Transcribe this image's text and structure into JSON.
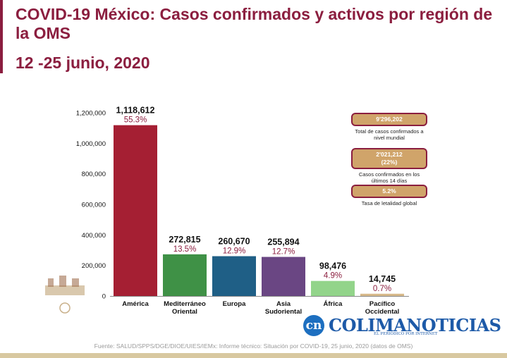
{
  "header": {
    "title": "COVID-19 México: Casos confirmados y activos por región de la OMS",
    "subtitle": "12 -25 junio, 2020"
  },
  "chart_data": {
    "type": "bar",
    "categories": [
      "América",
      "Mediterráneo Oriental",
      "Europa",
      "Asia Sudoriental",
      "África",
      "Pacífico Occidental"
    ],
    "category_lines": [
      [
        "América"
      ],
      [
        "Mediterráneo",
        "Oriental"
      ],
      [
        "Europa"
      ],
      [
        "Asia",
        "Sudoriental"
      ],
      [
        "África"
      ],
      [
        "Pacífico",
        "Occidental"
      ]
    ],
    "values": [
      1118612,
      272815,
      260670,
      255894,
      98476,
      14745
    ],
    "value_labels": [
      "1,118,612",
      "272,815",
      "260,670",
      "255,894",
      "98,476",
      "14,745"
    ],
    "percent_labels": [
      "55.3%",
      "13.5%",
      "12.9%",
      "12.7%",
      "4.9%",
      "0.7%"
    ],
    "colors": [
      "#a51f33",
      "#3f9146",
      "#1f5f86",
      "#6a4683",
      "#92d48a",
      "#d7b98a"
    ],
    "ylim": [
      0,
      1200000
    ],
    "yticks": [
      0,
      200000,
      400000,
      600000,
      800000,
      1000000,
      1200000
    ],
    "ytick_labels": [
      "0",
      "200,000",
      "400,000",
      "600,000",
      "800,000",
      "1,000,000",
      "1,200,000"
    ],
    "grid": false,
    "legend": "none"
  },
  "summary": {
    "total_value": "9'296,202",
    "total_label": "Total de casos confirmados a nivel mundial",
    "recent_value": "2'021,212",
    "recent_pct": "(22%)",
    "recent_label": "Casos confirmados en los últimos 14 días",
    "lethality_value": "5.2%",
    "lethality_label": "Tasa de letalidad global"
  },
  "footer": {
    "source": "Fuente: SALUD/SPPS/DGE/DIOE/UIES/IEMx: Informe técnico: Situación por COVID-19, 25 junio, 2020 (datos de OMS)"
  },
  "brand": {
    "logo_mark": "cn",
    "logo_text": "COLIMANOTICIAS",
    "logo_tagline": "EL PERIÓDICO POR INTERNET"
  },
  "colors": {
    "accent": "#8b1e3f",
    "pill": "#d0a46a"
  }
}
